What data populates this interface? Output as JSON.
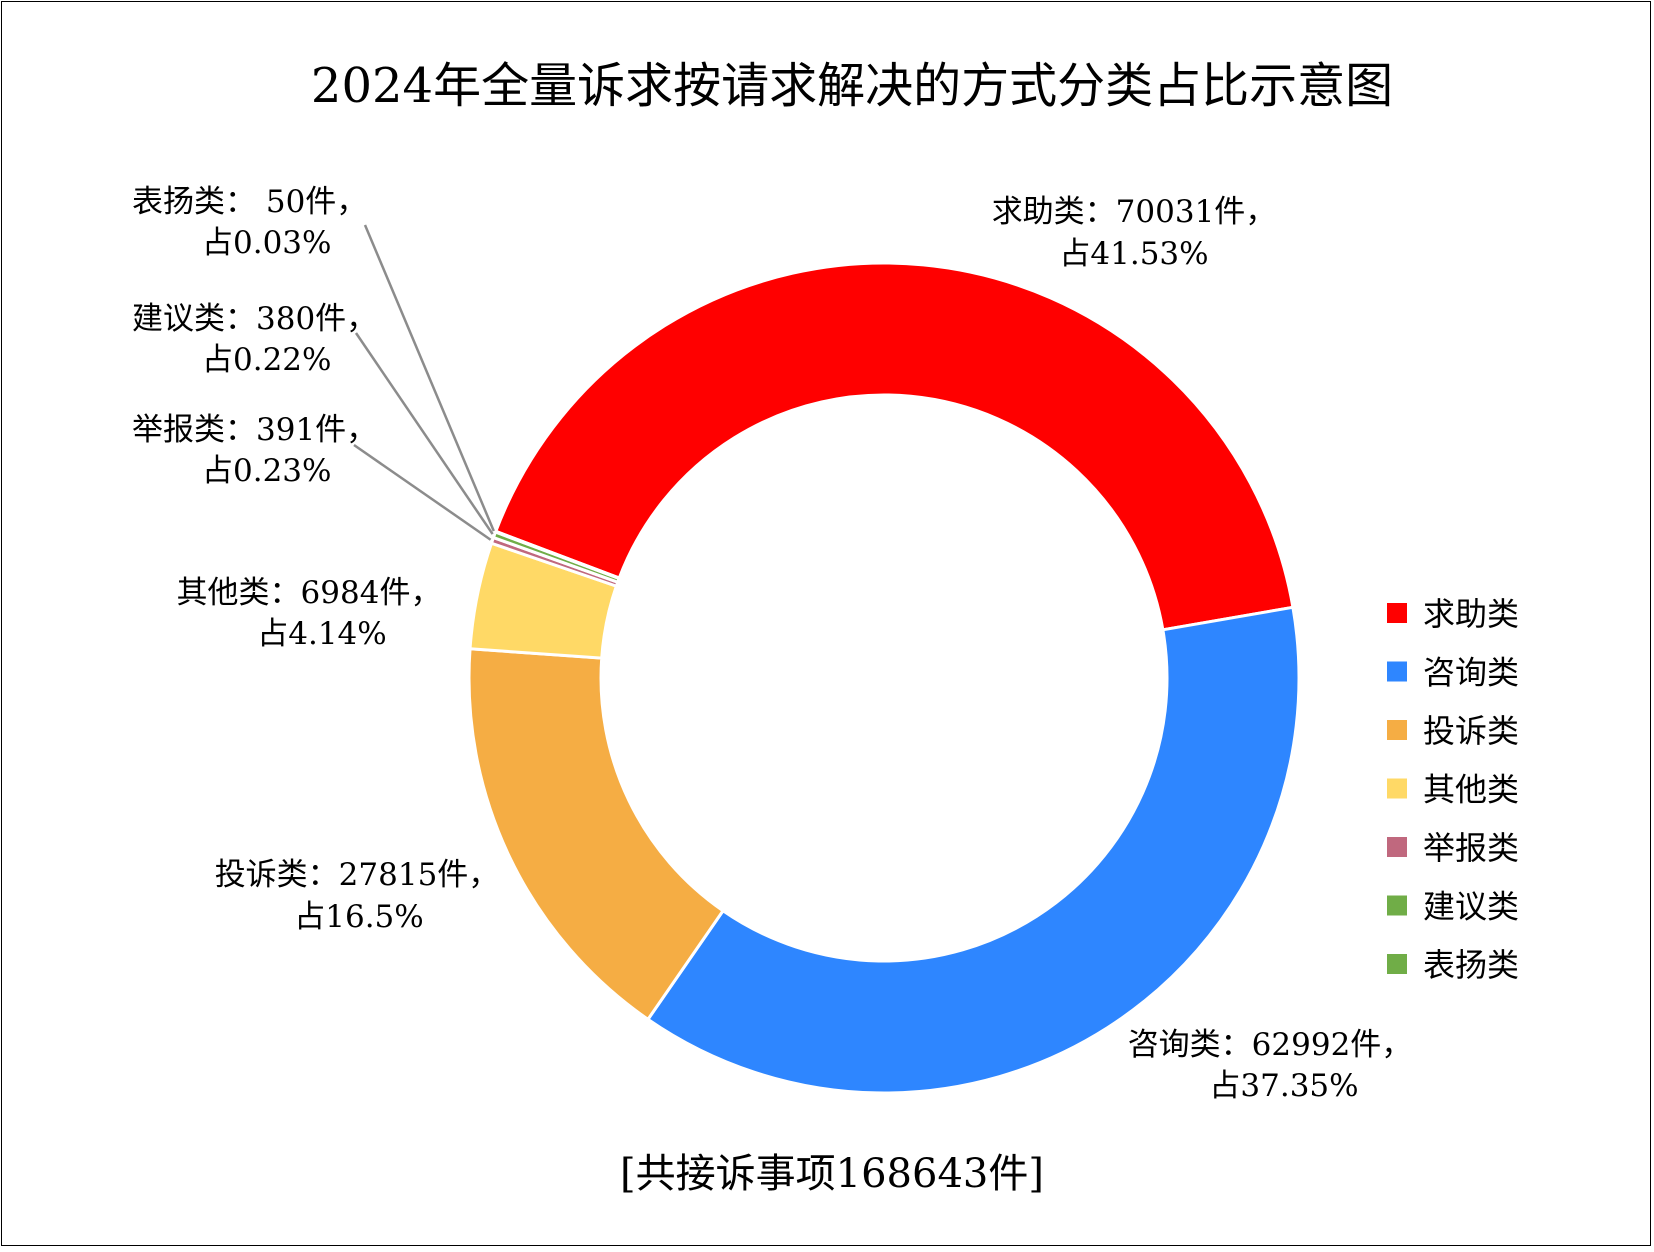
{
  "chart_data": {
    "type": "pie",
    "subtype": "donut",
    "title": "2024年全量诉求按请求解决的方式分类占比示意图",
    "total_label": "[共接诉事项168643件]",
    "legend_position": "right",
    "slices": [
      {
        "name": "求助类",
        "value": 70031,
        "percent": 41.53,
        "color": "#FF0000",
        "label_line1": "求助类：70031件，",
        "label_line2": "占41.53%"
      },
      {
        "name": "咨询类",
        "value": 62992,
        "percent": 37.35,
        "color": "#2E86FF",
        "label_line1": "咨询类：62992件，",
        "label_line2": "占37.35%"
      },
      {
        "name": "投诉类",
        "value": 27815,
        "percent": 16.5,
        "color": "#F5AD44",
        "label_line1": "投诉类：27815件，",
        "label_line2": "占16.5%"
      },
      {
        "name": "其他类",
        "value": 6984,
        "percent": 4.14,
        "color": "#FFD966",
        "label_line1": "其他类：6984件，",
        "label_line2": "占4.14%"
      },
      {
        "name": "举报类",
        "value": 391,
        "percent": 0.23,
        "color": "#C0687E",
        "label_line1": "举报类：391件，",
        "label_line2": "占0.23%"
      },
      {
        "name": "建议类",
        "value": 380,
        "percent": 0.22,
        "color": "#70AD47",
        "label_line1": "建议类：380件，",
        "label_line2": "占0.22%"
      },
      {
        "name": "表扬类",
        "value": 50,
        "percent": 0.03,
        "color": "#70AD47",
        "label_line1": "表扬类： 50件，",
        "label_line2": "占0.03%"
      }
    ]
  }
}
